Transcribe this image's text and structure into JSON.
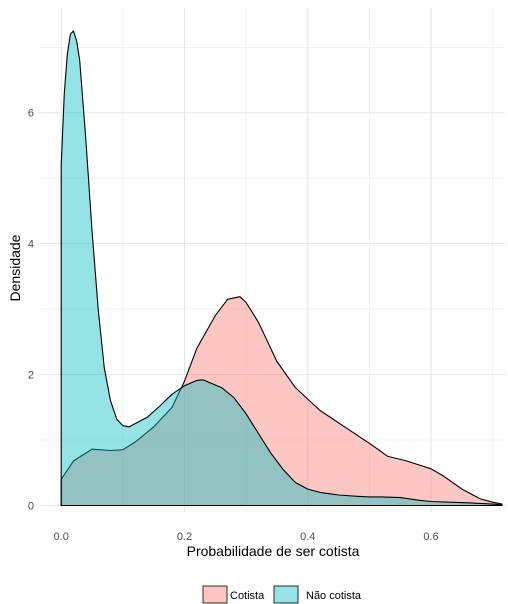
{
  "chart_data": {
    "type": "area",
    "title": "",
    "xlabel": "Probabilidade de ser cotista",
    "ylabel": "Densidade",
    "xlim": [
      -0.036,
      0.72
    ],
    "ylim": [
      -0.1,
      7.6
    ],
    "x_ticks": [
      0.0,
      0.2,
      0.4,
      0.6
    ],
    "x_tick_labels": [
      "0.0",
      "0.2",
      "0.4",
      "0.6"
    ],
    "y_ticks": [
      0,
      2,
      4,
      6
    ],
    "y_tick_labels": [
      "0",
      "2",
      "4",
      "6"
    ],
    "grid": true,
    "legend_position": "bottom",
    "series": [
      {
        "name": "Cotista",
        "color": "#f8766d",
        "points": [
          [
            0.0,
            0.4
          ],
          [
            0.02,
            0.68
          ],
          [
            0.05,
            0.86
          ],
          [
            0.08,
            0.84
          ],
          [
            0.1,
            0.85
          ],
          [
            0.12,
            0.97
          ],
          [
            0.15,
            1.2
          ],
          [
            0.18,
            1.5
          ],
          [
            0.2,
            1.9
          ],
          [
            0.22,
            2.4
          ],
          [
            0.25,
            2.9
          ],
          [
            0.27,
            3.15
          ],
          [
            0.29,
            3.19
          ],
          [
            0.3,
            3.1
          ],
          [
            0.32,
            2.8
          ],
          [
            0.35,
            2.2
          ],
          [
            0.38,
            1.8
          ],
          [
            0.42,
            1.45
          ],
          [
            0.46,
            1.2
          ],
          [
            0.5,
            0.95
          ],
          [
            0.53,
            0.75
          ],
          [
            0.56,
            0.68
          ],
          [
            0.58,
            0.62
          ],
          [
            0.6,
            0.56
          ],
          [
            0.62,
            0.45
          ],
          [
            0.65,
            0.25
          ],
          [
            0.68,
            0.1
          ],
          [
            0.7,
            0.05
          ],
          [
            0.715,
            0.02
          ]
        ]
      },
      {
        "name": "Não cotista",
        "color": "#00bfc4",
        "points": [
          [
            0.0,
            5.2
          ],
          [
            0.005,
            6.3
          ],
          [
            0.01,
            6.9
          ],
          [
            0.015,
            7.2
          ],
          [
            0.02,
            7.25
          ],
          [
            0.025,
            7.1
          ],
          [
            0.03,
            6.8
          ],
          [
            0.04,
            5.6
          ],
          [
            0.05,
            4.2
          ],
          [
            0.06,
            3.0
          ],
          [
            0.07,
            2.1
          ],
          [
            0.08,
            1.6
          ],
          [
            0.09,
            1.32
          ],
          [
            0.1,
            1.22
          ],
          [
            0.11,
            1.2
          ],
          [
            0.12,
            1.25
          ],
          [
            0.14,
            1.35
          ],
          [
            0.16,
            1.52
          ],
          [
            0.18,
            1.7
          ],
          [
            0.2,
            1.83
          ],
          [
            0.22,
            1.91
          ],
          [
            0.23,
            1.92
          ],
          [
            0.24,
            1.88
          ],
          [
            0.26,
            1.8
          ],
          [
            0.28,
            1.65
          ],
          [
            0.3,
            1.4
          ],
          [
            0.32,
            1.1
          ],
          [
            0.34,
            0.8
          ],
          [
            0.36,
            0.55
          ],
          [
            0.38,
            0.35
          ],
          [
            0.4,
            0.25
          ],
          [
            0.42,
            0.2
          ],
          [
            0.45,
            0.16
          ],
          [
            0.48,
            0.14
          ],
          [
            0.5,
            0.13
          ],
          [
            0.52,
            0.13
          ],
          [
            0.55,
            0.12
          ],
          [
            0.58,
            0.08
          ],
          [
            0.6,
            0.06
          ],
          [
            0.63,
            0.05
          ],
          [
            0.66,
            0.04
          ],
          [
            0.7,
            0.02
          ],
          [
            0.715,
            0.01
          ]
        ]
      }
    ]
  }
}
